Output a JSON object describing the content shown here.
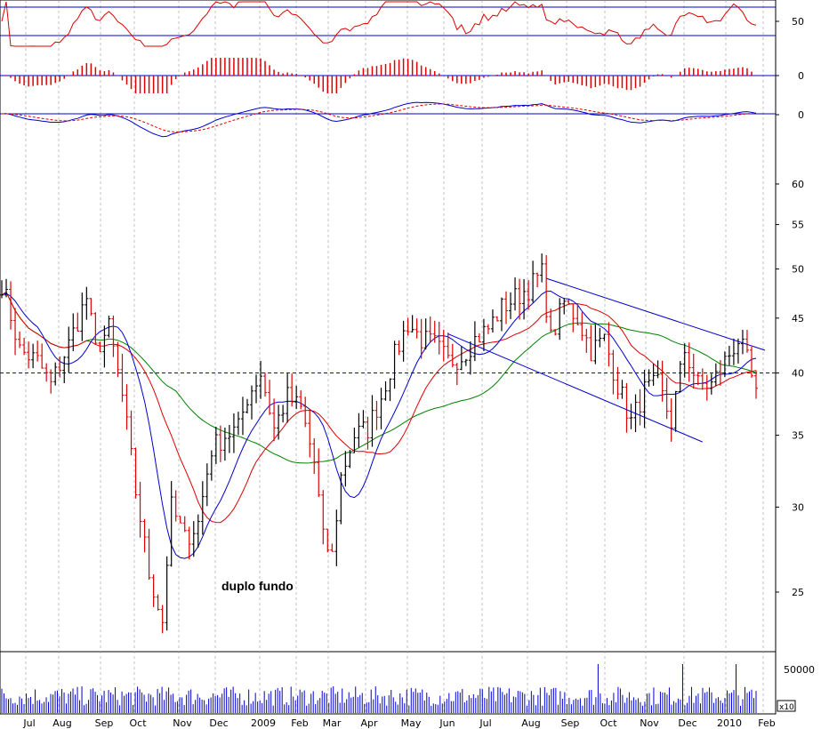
{
  "chart_data": {
    "type": "candlestick",
    "annotation": "duplo fundo",
    "months": [
      "Jul",
      "Aug",
      "Sep",
      "Oct",
      "Nov",
      "Dec",
      "2009",
      "Feb",
      "Mar",
      "Apr",
      "May",
      "Jun",
      "Jul",
      "Aug",
      "Sep",
      "Oct",
      "Nov",
      "Dec",
      "2010",
      "Feb"
    ],
    "volume_multiplier_label": "x10",
    "price_axis": {
      "scale": "log",
      "ticks": [
        25,
        30,
        35,
        40,
        45,
        50,
        55,
        60
      ],
      "ylim": [
        22,
        65
      ],
      "reference_line": 40
    },
    "price_anchors": [
      {
        "t": 0,
        "p": 48.5
      },
      {
        "t": 4,
        "p": 42
      },
      {
        "t": 8,
        "p": 41
      },
      {
        "t": 11,
        "p": 39
      },
      {
        "t": 15,
        "p": 42.5
      },
      {
        "t": 19,
        "p": 47
      },
      {
        "t": 21,
        "p": 42
      },
      {
        "t": 24,
        "p": 44
      },
      {
        "t": 27,
        "p": 38
      },
      {
        "t": 30,
        "p": 31
      },
      {
        "t": 33,
        "p": 26
      },
      {
        "t": 36,
        "p": 23.5
      },
      {
        "t": 38,
        "p": 30
      },
      {
        "t": 41,
        "p": 28
      },
      {
        "t": 44,
        "p": 29
      },
      {
        "t": 47,
        "p": 34
      },
      {
        "t": 50,
        "p": 35
      },
      {
        "t": 53,
        "p": 35.5
      },
      {
        "t": 55,
        "p": 38
      },
      {
        "t": 58,
        "p": 40
      },
      {
        "t": 61,
        "p": 35.5
      },
      {
        "t": 64,
        "p": 38
      },
      {
        "t": 67,
        "p": 37
      },
      {
        "t": 70,
        "p": 33
      },
      {
        "t": 72,
        "p": 28
      },
      {
        "t": 74,
        "p": 27
      },
      {
        "t": 76,
        "p": 32
      },
      {
        "t": 79,
        "p": 35
      },
      {
        "t": 82,
        "p": 35.5
      },
      {
        "t": 85,
        "p": 38
      },
      {
        "t": 88,
        "p": 41.5
      },
      {
        "t": 91,
        "p": 44.5
      },
      {
        "t": 94,
        "p": 43
      },
      {
        "t": 97,
        "p": 42.5
      },
      {
        "t": 100,
        "p": 41
      },
      {
        "t": 103,
        "p": 41.5
      },
      {
        "t": 106,
        "p": 43
      },
      {
        "t": 109,
        "p": 44
      },
      {
        "t": 112,
        "p": 46
      },
      {
        "t": 115,
        "p": 47
      },
      {
        "t": 118,
        "p": 48
      },
      {
        "t": 121,
        "p": 49.5
      },
      {
        "t": 123,
        "p": 43
      },
      {
        "t": 126,
        "p": 46.5
      },
      {
        "t": 129,
        "p": 45
      },
      {
        "t": 132,
        "p": 42
      },
      {
        "t": 135,
        "p": 43
      },
      {
        "t": 138,
        "p": 39
      },
      {
        "t": 141,
        "p": 36
      },
      {
        "t": 144,
        "p": 38.5
      },
      {
        "t": 147,
        "p": 39
      },
      {
        "t": 150,
        "p": 36
      },
      {
        "t": 153,
        "p": 42
      },
      {
        "t": 156,
        "p": 39
      },
      {
        "t": 159,
        "p": 39
      },
      {
        "t": 162,
        "p": 41
      },
      {
        "t": 165,
        "p": 43
      },
      {
        "t": 167,
        "p": 41
      },
      {
        "t": 169,
        "p": 38
      }
    ],
    "trendlines": [
      {
        "from": {
          "t": 122,
          "p": 49
        },
        "to": {
          "t": 171,
          "p": 42
        }
      },
      {
        "from": {
          "t": 100,
          "p": 43.5
        },
        "to": {
          "t": 157,
          "p": 34.5
        }
      }
    ],
    "rsi": {
      "ticks": [
        50
      ],
      "upper": 70,
      "lower": 30
    },
    "macd_histogram": {
      "ticks": [
        0
      ]
    },
    "macd": {
      "ticks": [
        0
      ]
    },
    "volume_axis": {
      "ticks": [
        50000
      ]
    },
    "colors": {
      "bar": "#dd0000",
      "bar_up": "#000000",
      "ma_short": "#0000cc",
      "ma_mid": "#dd0000",
      "ma_long": "#008000",
      "trendline": "#0000cc",
      "indicator": "#dd0000",
      "grid": "#999999",
      "volume": "#0000cc"
    }
  }
}
